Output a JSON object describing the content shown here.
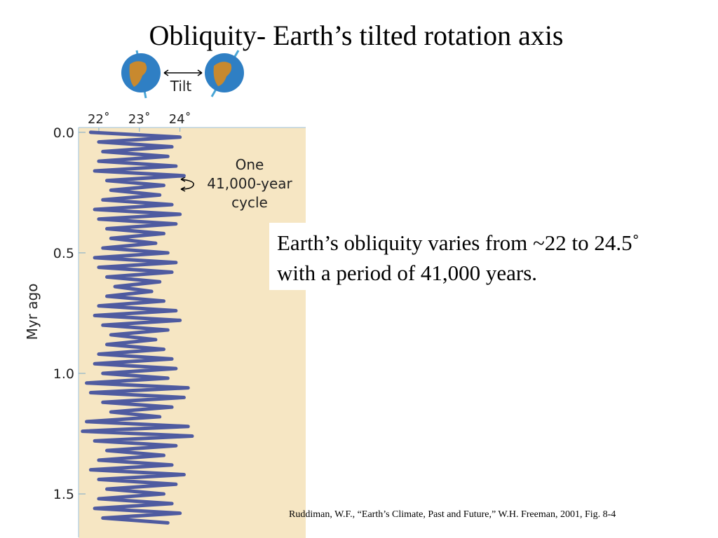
{
  "title": "Obliquity- Earth’s tilted rotation axis",
  "body": [
    "Earth’s obliquity varies from ~22 to 24.5˚",
    "with a period of 41,000 years."
  ],
  "citation": "Ruddiman, W.F., “Earth’s Climate, Past and Future,” W.H. Freeman, 2001, Fig. 8-4",
  "chart_data": {
    "type": "line",
    "orientation": "vertical",
    "diagram_label": "Tilt",
    "y_label": "Myr ago",
    "annotation": [
      "One",
      "41,000-year",
      "cycle"
    ],
    "xlim": [
      21.5,
      27.1
    ],
    "xticks": [
      {
        "value": 22,
        "label": "22˚"
      },
      {
        "value": 23,
        "label": "23˚"
      },
      {
        "value": 24,
        "label": "24˚"
      }
    ],
    "ylim": [
      -0.02,
      1.68
    ],
    "yticks": [
      {
        "value": 0,
        "label": "0.0"
      },
      {
        "value": 0.5,
        "label": "0.5"
      },
      {
        "value": 1,
        "label": "1.0"
      },
      {
        "value": 1.5,
        "label": "1.5"
      }
    ],
    "x": [
      0,
      0.02,
      0.04,
      0.06,
      0.08,
      0.1,
      0.12,
      0.14,
      0.16,
      0.18,
      0.2,
      0.22,
      0.24,
      0.26,
      0.28,
      0.3,
      0.32,
      0.34,
      0.36,
      0.38,
      0.4,
      0.42,
      0.44,
      0.46,
      0.48,
      0.5,
      0.52,
      0.54,
      0.56,
      0.58,
      0.6,
      0.62,
      0.64,
      0.66,
      0.68,
      0.7,
      0.72,
      0.74,
      0.76,
      0.78,
      0.8,
      0.82,
      0.84,
      0.86,
      0.88,
      0.9,
      0.92,
      0.94,
      0.96,
      0.98,
      1,
      1.02,
      1.04,
      1.06,
      1.08,
      1.1,
      1.12,
      1.14,
      1.16,
      1.18,
      1.2,
      1.22,
      1.24,
      1.26,
      1.28,
      1.3,
      1.32,
      1.34,
      1.36,
      1.38,
      1.4,
      1.42,
      1.44,
      1.46,
      1.48,
      1.5,
      1.52,
      1.54,
      1.56,
      1.58,
      1.6,
      1.62
    ],
    "series": [
      {
        "color": "#4f5ba0",
        "values": [
          21.8,
          24.0,
          22.0,
          23.8,
          22.1,
          23.7,
          22.0,
          23.9,
          21.9,
          24.1,
          22.2,
          23.6,
          22.3,
          23.5,
          22.1,
          23.8,
          21.9,
          24.0,
          22.0,
          23.9,
          22.2,
          23.6,
          22.3,
          23.4,
          22.1,
          23.7,
          21.9,
          23.9,
          22.0,
          23.8,
          22.2,
          23.5,
          22.4,
          23.3,
          22.2,
          23.6,
          22.0,
          23.9,
          21.9,
          24.0,
          22.1,
          23.7,
          22.3,
          23.4,
          22.2,
          23.6,
          22.0,
          23.8,
          21.9,
          23.9,
          22.1,
          23.7,
          21.7,
          24.2,
          21.8,
          24.1,
          22.1,
          23.8,
          22.3,
          23.5,
          21.7,
          24.2,
          21.6,
          24.3,
          21.9,
          23.9,
          22.2,
          23.6,
          22.0,
          23.8,
          21.8,
          24.1,
          22.0,
          23.9,
          22.2,
          23.6,
          22.0,
          23.8,
          21.9,
          24.0,
          22.1,
          23.7
        ]
      }
    ]
  }
}
